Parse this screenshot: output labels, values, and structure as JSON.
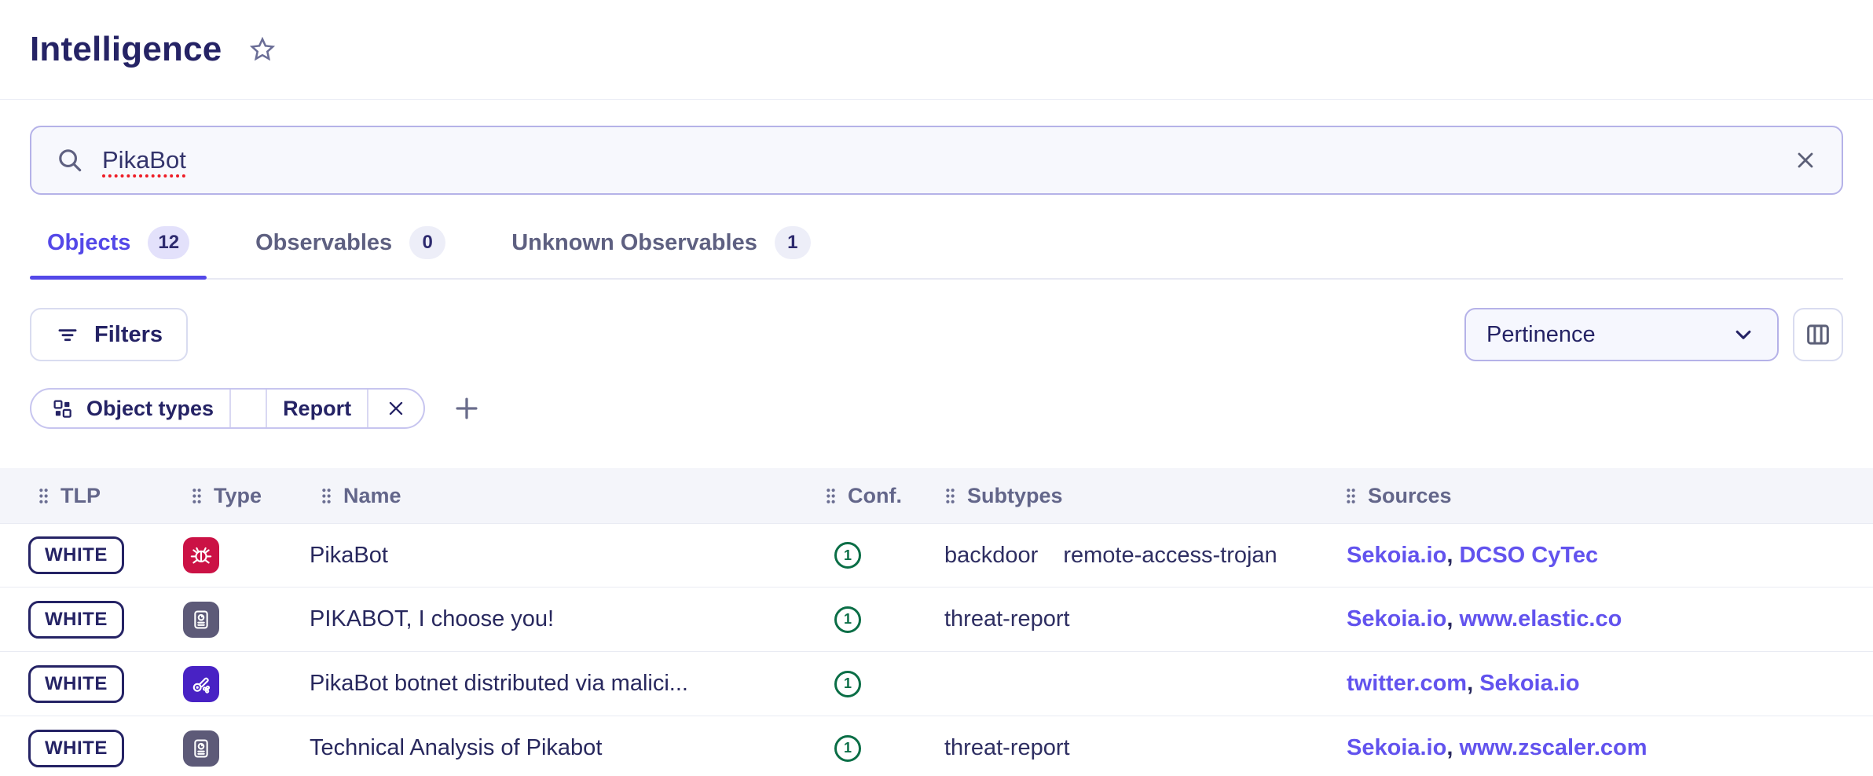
{
  "header": {
    "title": "Intelligence"
  },
  "search": {
    "value": "PikaBot"
  },
  "tabs": [
    {
      "label": "Objects",
      "count": "12",
      "active": true
    },
    {
      "label": "Observables",
      "count": "0",
      "active": false
    },
    {
      "label": "Unknown Observables",
      "count": "1",
      "active": false
    }
  ],
  "toolbar": {
    "filters_label": "Filters",
    "sort_label": "Pertinence"
  },
  "filter_chip": {
    "field_label": "Object types",
    "value_label": "Report"
  },
  "table": {
    "columns": [
      "TLP",
      "Type",
      "Name",
      "Conf.",
      "Subtypes",
      "Sources"
    ],
    "rows": [
      {
        "tlp": "WHITE",
        "type": "malware",
        "type_icon": "bug-icon",
        "name": "PikaBot",
        "conf": "1",
        "subtypes": [
          "backdoor",
          "remote-access-trojan"
        ],
        "sources": [
          "Sekoia.io",
          "DCSO CyTec"
        ]
      },
      {
        "tlp": "WHITE",
        "type": "report",
        "type_icon": "report-icon",
        "name": "PIKABOT, I choose you!",
        "conf": "1",
        "subtypes": [
          "threat-report"
        ],
        "sources": [
          "Sekoia.io",
          "www.elastic.co"
        ]
      },
      {
        "tlp": "WHITE",
        "type": "campaign",
        "type_icon": "cannon-icon",
        "name": "PikaBot botnet distributed via malici...",
        "conf": "1",
        "subtypes": [],
        "sources": [
          "twitter.com",
          "Sekoia.io"
        ]
      },
      {
        "tlp": "WHITE",
        "type": "report",
        "type_icon": "report-icon",
        "name": "Technical Analysis of Pikabot",
        "conf": "1",
        "subtypes": [
          "threat-report"
        ],
        "sources": [
          "Sekoia.io",
          "www.zscaler.com"
        ]
      }
    ]
  },
  "colors": {
    "accent": "#5448e8",
    "title": "#252365",
    "link": "#6253ee",
    "confidence_green": "#0a6e46",
    "malware_icon_bg": "#cb1245",
    "report_icon_bg": "#5d5a78",
    "campaign_icon_bg": "#4822c4",
    "spellcheck_red": "#ee1c26"
  }
}
